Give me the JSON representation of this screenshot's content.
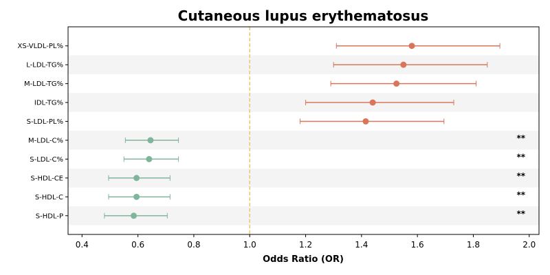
{
  "chart_data": {
    "type": "forest",
    "title": "Cutaneous lupus erythematosus",
    "xlabel": "Odds Ratio (OR)",
    "xlim": [
      0.35,
      2.035
    ],
    "xticks": [
      0.4,
      0.6,
      0.8,
      1.0,
      1.2,
      1.4,
      1.6,
      1.8,
      2.0
    ],
    "xtick_labels": [
      "0.4",
      "0.6",
      "0.8",
      "1.0",
      "1.2",
      "1.4",
      "1.6",
      "1.8",
      "2.0"
    ],
    "reference_line": 1.0,
    "colors": {
      "risk": "#d9765a",
      "protective": "#7fb59a",
      "reference": "#f0c46a",
      "band": "#f4f4f4"
    },
    "rows": [
      {
        "label": "XS-VLDL-PL%",
        "or": 1.58,
        "lower": 1.31,
        "upper": 1.895,
        "group": "risk",
        "sig": ""
      },
      {
        "label": "L-LDL-TG%",
        "or": 1.55,
        "lower": 1.3,
        "upper": 1.85,
        "group": "risk",
        "sig": ""
      },
      {
        "label": "M-LDL-TG%",
        "or": 1.525,
        "lower": 1.29,
        "upper": 1.81,
        "group": "risk",
        "sig": ""
      },
      {
        "label": "IDL-TG%",
        "or": 1.44,
        "lower": 1.2,
        "upper": 1.73,
        "group": "risk",
        "sig": ""
      },
      {
        "label": "S-LDL-PL%",
        "or": 1.415,
        "lower": 1.18,
        "upper": 1.695,
        "group": "risk",
        "sig": ""
      },
      {
        "label": "M-LDL-C%",
        "or": 0.645,
        "lower": 0.555,
        "upper": 0.745,
        "group": "protective",
        "sig": "**"
      },
      {
        "label": "S-LDL-C%",
        "or": 0.64,
        "lower": 0.55,
        "upper": 0.745,
        "group": "protective",
        "sig": "**"
      },
      {
        "label": "S-HDL-CE",
        "or": 0.595,
        "lower": 0.495,
        "upper": 0.715,
        "group": "protective",
        "sig": "**"
      },
      {
        "label": "S-HDL-C",
        "or": 0.595,
        "lower": 0.495,
        "upper": 0.715,
        "group": "protective",
        "sig": "**"
      },
      {
        "label": "S-HDL-P",
        "or": 0.585,
        "lower": 0.48,
        "upper": 0.705,
        "group": "protective",
        "sig": "**"
      }
    ]
  }
}
